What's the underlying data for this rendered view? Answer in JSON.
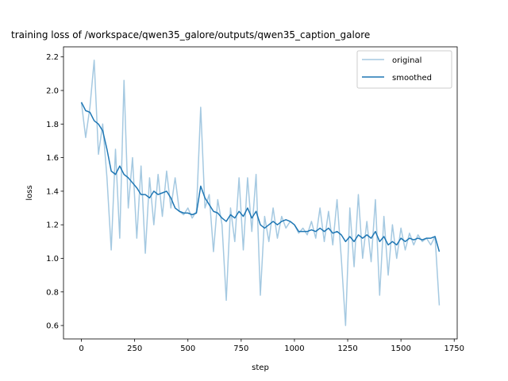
{
  "chart_data": {
    "type": "line",
    "title": "training loss of /workspace/qwen35_galore/outputs/qwen35_caption_galore",
    "x_label": "step",
    "y_label": "loss",
    "x": [
      0,
      20,
      40,
      60,
      80,
      100,
      120,
      140,
      160,
      180,
      200,
      220,
      240,
      260,
      280,
      300,
      320,
      340,
      360,
      380,
      400,
      420,
      440,
      460,
      480,
      500,
      520,
      540,
      560,
      580,
      600,
      620,
      640,
      660,
      680,
      700,
      720,
      740,
      760,
      780,
      800,
      820,
      840,
      860,
      880,
      900,
      920,
      940,
      960,
      980,
      1000,
      1020,
      1040,
      1060,
      1080,
      1100,
      1120,
      1140,
      1160,
      1180,
      1200,
      1220,
      1240,
      1260,
      1280,
      1300,
      1320,
      1340,
      1360,
      1380,
      1400,
      1420,
      1440,
      1460,
      1480,
      1500,
      1520,
      1540,
      1560,
      1580,
      1600,
      1620,
      1640,
      1660,
      1680
    ],
    "series": [
      {
        "name": "original",
        "color": "#1f77b4",
        "alpha": 0.4,
        "values": [
          1.93,
          1.72,
          1.9,
          2.18,
          1.62,
          1.8,
          1.48,
          1.05,
          1.65,
          1.12,
          2.06,
          1.3,
          1.6,
          1.12,
          1.55,
          1.03,
          1.48,
          1.2,
          1.5,
          1.25,
          1.52,
          1.3,
          1.48,
          1.28,
          1.26,
          1.3,
          1.24,
          1.28,
          1.9,
          1.3,
          1.38,
          1.04,
          1.35,
          1.2,
          0.75,
          1.3,
          1.1,
          1.48,
          1.05,
          1.48,
          1.16,
          1.5,
          0.78,
          1.25,
          1.1,
          1.3,
          1.12,
          1.25,
          1.18,
          1.22,
          1.2,
          1.15,
          1.18,
          1.14,
          1.22,
          1.12,
          1.3,
          1.1,
          1.28,
          1.08,
          1.35,
          1.0,
          0.6,
          1.3,
          0.95,
          1.38,
          1.0,
          1.22,
          0.98,
          1.35,
          0.78,
          1.25,
          0.9,
          1.2,
          1.0,
          1.18,
          1.05,
          1.15,
          1.08,
          1.14,
          1.1,
          1.12,
          1.08,
          1.13,
          0.72
        ]
      },
      {
        "name": "smoothed",
        "color": "#1f77b4",
        "alpha": 1,
        "values": [
          1.93,
          1.88,
          1.87,
          1.82,
          1.8,
          1.76,
          1.65,
          1.52,
          1.5,
          1.55,
          1.5,
          1.48,
          1.45,
          1.42,
          1.38,
          1.38,
          1.36,
          1.4,
          1.38,
          1.39,
          1.4,
          1.36,
          1.3,
          1.28,
          1.27,
          1.27,
          1.26,
          1.27,
          1.43,
          1.36,
          1.32,
          1.28,
          1.27,
          1.24,
          1.22,
          1.26,
          1.24,
          1.28,
          1.25,
          1.3,
          1.24,
          1.28,
          1.2,
          1.18,
          1.2,
          1.22,
          1.2,
          1.22,
          1.23,
          1.22,
          1.2,
          1.16,
          1.16,
          1.16,
          1.17,
          1.16,
          1.18,
          1.16,
          1.18,
          1.15,
          1.16,
          1.14,
          1.1,
          1.13,
          1.1,
          1.14,
          1.12,
          1.14,
          1.12,
          1.16,
          1.1,
          1.13,
          1.08,
          1.1,
          1.08,
          1.12,
          1.1,
          1.12,
          1.11,
          1.12,
          1.11,
          1.12,
          1.12,
          1.13,
          1.04
        ]
      }
    ],
    "xlim": [
      -84,
      1764
    ],
    "xticks": [
      0,
      250,
      500,
      750,
      1000,
      1250,
      1500,
      1750
    ],
    "ylim": [
      0.52,
      2.26
    ],
    "yticks": [
      0.6,
      0.8,
      {
        "value": 1,
        "label": "1.0"
      },
      1.2,
      1.4,
      1.6,
      1.8,
      {
        "value": 2,
        "label": "2.0"
      },
      2.2
    ],
    "grid": false,
    "legend": "upper right"
  }
}
